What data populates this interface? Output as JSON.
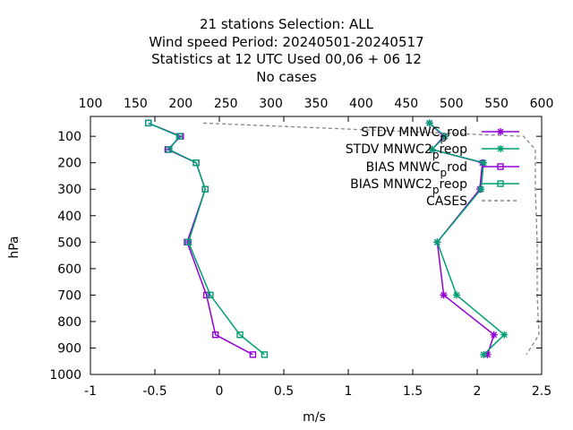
{
  "chart_data": {
    "type": "line",
    "title_lines": [
      "21 stations Selection: ALL",
      "Wind speed  Period: 20240501-20240517",
      "Statistics at 12 UTC  Used  00,06  + 06 12",
      "No cases"
    ],
    "xlabel": "m/s",
    "ylabel": "hPa",
    "xlim": [
      -1,
      2.5
    ],
    "ylim": [
      1000,
      25
    ],
    "x_ticks": [
      "-1",
      "-0.5",
      "0",
      "0.5",
      "1",
      "1.5",
      "2",
      "2.5"
    ],
    "y_ticks": [
      "100",
      "200",
      "300",
      "400",
      "500",
      "600",
      "700",
      "800",
      "900",
      "1000"
    ],
    "x2lim": [
      100,
      600
    ],
    "x2_ticks": [
      "100",
      "150",
      "200",
      "250",
      "300",
      "350",
      "400",
      "450",
      "500",
      "550",
      "600"
    ],
    "legend_position": "top-right",
    "series": [
      {
        "name": "STDV MNWC_prod",
        "legend_main": "STDV MNWC",
        "legend_sub": "p",
        "legend_tail": "rod",
        "color": "#9400d3",
        "marker": "star",
        "points": [
          [
            1.63,
            50
          ],
          [
            1.74,
            100
          ],
          [
            1.65,
            150
          ],
          [
            2.04,
            200
          ],
          [
            2.02,
            300
          ],
          [
            1.69,
            500
          ],
          [
            1.74,
            700
          ],
          [
            2.13,
            850
          ],
          [
            2.08,
            925
          ]
        ]
      },
      {
        "name": "STDV MNWC2_preop",
        "legend_main": "STDV MNWC2",
        "legend_sub": "p",
        "legend_tail": "reop",
        "color": "#009e73",
        "marker": "star",
        "points": [
          [
            1.63,
            50
          ],
          [
            1.75,
            100
          ],
          [
            1.65,
            150
          ],
          [
            2.05,
            200
          ],
          [
            2.03,
            300
          ],
          [
            1.69,
            500
          ],
          [
            1.84,
            700
          ],
          [
            2.21,
            850
          ],
          [
            2.05,
            925
          ]
        ]
      },
      {
        "name": "BIAS MNWC_prod",
        "legend_main": "BIAS MNWC",
        "legend_sub": "p",
        "legend_tail": "rod",
        "color": "#9400d3",
        "marker": "square",
        "points": [
          [
            -0.55,
            50
          ],
          [
            -0.3,
            100
          ],
          [
            -0.4,
            150
          ],
          [
            -0.18,
            200
          ],
          [
            -0.11,
            300
          ],
          [
            -0.25,
            500
          ],
          [
            -0.1,
            700
          ],
          [
            -0.03,
            850
          ],
          [
            0.26,
            925
          ]
        ]
      },
      {
        "name": "BIAS MNWC2_preop",
        "legend_main": "BIAS MNWC2",
        "legend_sub": "p",
        "legend_tail": "reop",
        "color": "#009e73",
        "marker": "square",
        "points": [
          [
            -0.55,
            50
          ],
          [
            -0.31,
            100
          ],
          [
            -0.39,
            150
          ],
          [
            -0.18,
            200
          ],
          [
            -0.11,
            300
          ],
          [
            -0.24,
            500
          ],
          [
            -0.07,
            700
          ],
          [
            0.16,
            850
          ],
          [
            0.35,
            925
          ]
        ]
      },
      {
        "name": "CASES",
        "legend_main": "CASES",
        "legend_sub": "",
        "legend_tail": "",
        "color": "#888888",
        "marker": "none",
        "axis": "x2",
        "points": [
          [
            225,
            50
          ],
          [
            580,
            100
          ],
          [
            593,
            150
          ],
          [
            593,
            200
          ],
          [
            593,
            300
          ],
          [
            595,
            500
          ],
          [
            595,
            700
          ],
          [
            597,
            850
          ],
          [
            583,
            925
          ]
        ]
      }
    ]
  }
}
